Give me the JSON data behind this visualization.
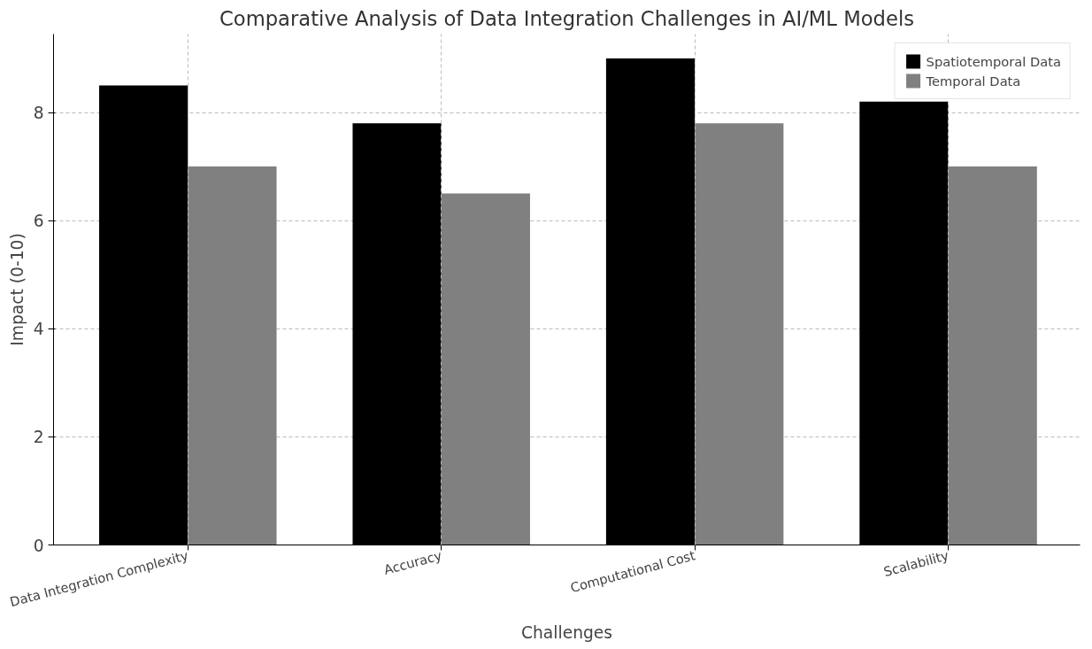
{
  "chart_data": {
    "type": "bar",
    "title": "Comparative Analysis of Data Integration Challenges in AI/ML Models",
    "xlabel": "Challenges",
    "ylabel": "Impact (0-10)",
    "categories": [
      "Data Integration Complexity",
      "Accuracy",
      "Computational Cost",
      "Scalability"
    ],
    "series": [
      {
        "name": "Spatiotemporal Data",
        "color": "#000000",
        "values": [
          8.5,
          7.8,
          9.0,
          8.2
        ]
      },
      {
        "name": "Temporal Data",
        "color": "#808080",
        "values": [
          7.0,
          6.5,
          7.8,
          7.0
        ]
      }
    ],
    "ylim": [
      0,
      9.45
    ],
    "yticks": [
      0,
      2,
      4,
      6,
      8
    ],
    "grid": true,
    "legend": "top right"
  }
}
